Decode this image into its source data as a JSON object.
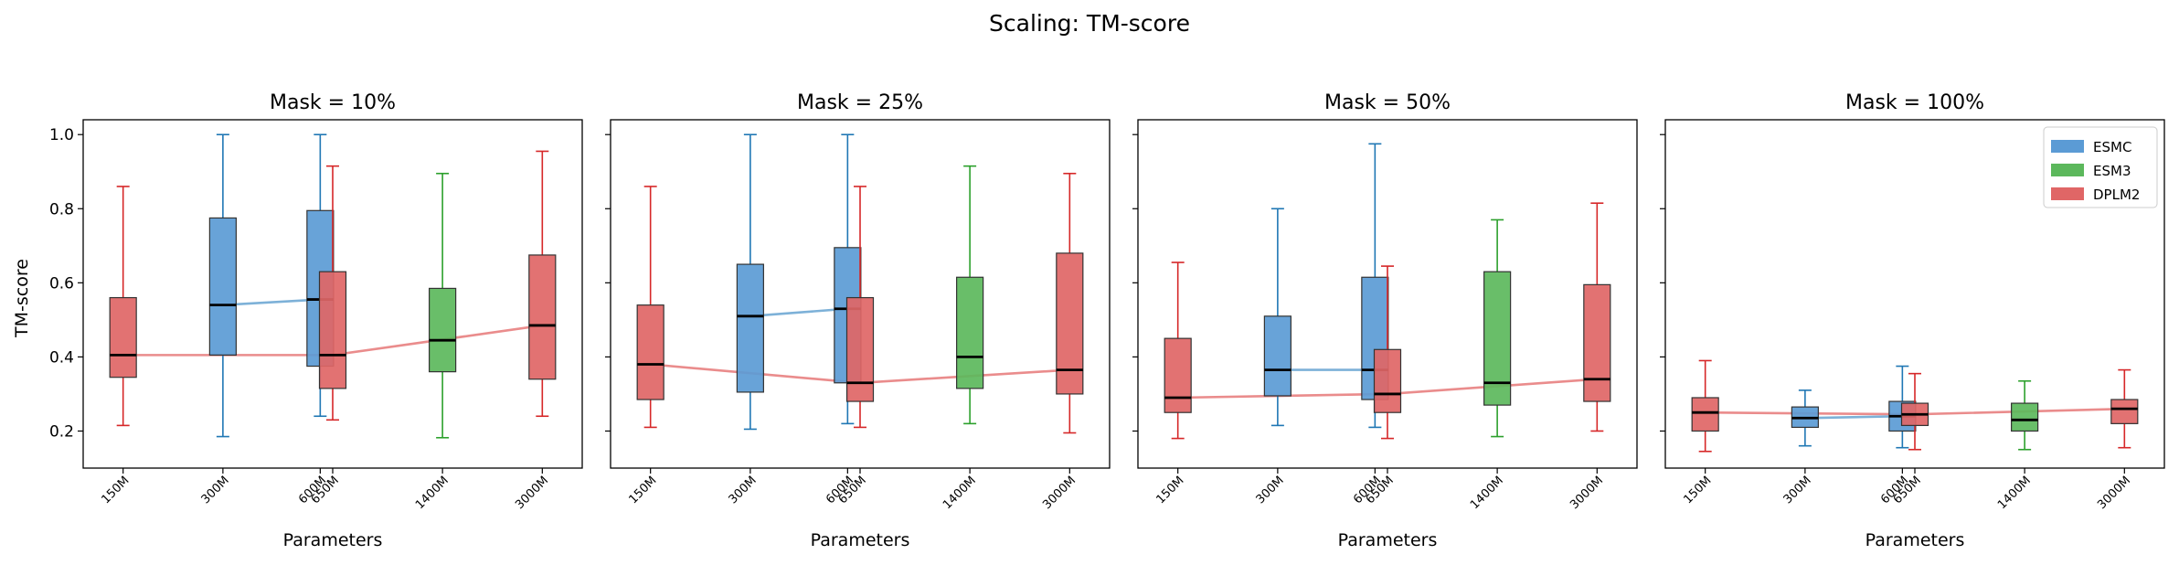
{
  "figure": {
    "title": "Scaling: TM-score",
    "ylabel": "TM-score",
    "xlabel": "Parameters"
  },
  "legend": {
    "position": "top-right",
    "items": [
      {
        "name": "ESMC",
        "color": "#5b9bd5"
      },
      {
        "name": "ESM3",
        "color": "#5cb85c"
      },
      {
        "name": "DPLM2",
        "color": "#e06666"
      }
    ]
  },
  "colors": {
    "ESMC": {
      "fill": "#5b9bd5",
      "edge": "#1f77b4",
      "line": "#6fa8d4"
    },
    "ESM3": {
      "fill": "#5cb85c",
      "edge": "#2ca02c",
      "line": "#7cc47c"
    },
    "DPLM2": {
      "fill": "#e06666",
      "edge": "#d62728",
      "line": "#e88080"
    }
  },
  "chart_data": [
    {
      "type": "box",
      "title": "Mask = 10%",
      "xlabel": "Parameters",
      "ylabel": "TM-score",
      "ylim": [
        0.1,
        1.04
      ],
      "yticks": [
        0.2,
        0.4,
        0.6,
        0.8,
        1.0
      ],
      "xticks": [
        "150M",
        "300M",
        "600M",
        "650M",
        "1400M",
        "3000M"
      ],
      "legend": false,
      "boxes": [
        {
          "model": "DPLM2",
          "params": "150M",
          "whislo": 0.215,
          "q1": 0.345,
          "med": 0.405,
          "q3": 0.56,
          "whishi": 0.86
        },
        {
          "model": "ESMC",
          "params": "300M",
          "whislo": 0.185,
          "q1": 0.405,
          "med": 0.54,
          "q3": 0.775,
          "whishi": 1.0
        },
        {
          "model": "ESMC",
          "params": "600M",
          "whislo": 0.24,
          "q1": 0.375,
          "med": 0.555,
          "q3": 0.795,
          "whishi": 1.0
        },
        {
          "model": "DPLM2",
          "params": "650M",
          "whislo": 0.23,
          "q1": 0.315,
          "med": 0.405,
          "q3": 0.63,
          "whishi": 0.915
        },
        {
          "model": "ESM3",
          "params": "1400M",
          "whislo": 0.182,
          "q1": 0.36,
          "med": 0.445,
          "q3": 0.585,
          "whishi": 0.895
        },
        {
          "model": "DPLM2",
          "params": "3000M",
          "whislo": 0.24,
          "q1": 0.34,
          "med": 0.485,
          "q3": 0.675,
          "whishi": 0.955
        }
      ]
    },
    {
      "type": "box",
      "title": "Mask = 25%",
      "xlabel": "Parameters",
      "ylabel": "",
      "ylim": [
        0.1,
        1.04
      ],
      "yticks": [
        0.2,
        0.4,
        0.6,
        0.8,
        1.0
      ],
      "xticks": [
        "150M",
        "300M",
        "600M",
        "650M",
        "1400M",
        "3000M"
      ],
      "legend": false,
      "boxes": [
        {
          "model": "DPLM2",
          "params": "150M",
          "whislo": 0.21,
          "q1": 0.285,
          "med": 0.38,
          "q3": 0.54,
          "whishi": 0.86
        },
        {
          "model": "ESMC",
          "params": "300M",
          "whislo": 0.205,
          "q1": 0.305,
          "med": 0.51,
          "q3": 0.65,
          "whishi": 1.0
        },
        {
          "model": "ESMC",
          "params": "600M",
          "whislo": 0.22,
          "q1": 0.33,
          "med": 0.53,
          "q3": 0.695,
          "whishi": 1.0
        },
        {
          "model": "DPLM2",
          "params": "650M",
          "whislo": 0.21,
          "q1": 0.28,
          "med": 0.33,
          "q3": 0.56,
          "whishi": 0.86
        },
        {
          "model": "ESM3",
          "params": "1400M",
          "whislo": 0.22,
          "q1": 0.315,
          "med": 0.4,
          "q3": 0.615,
          "whishi": 0.915
        },
        {
          "model": "DPLM2",
          "params": "3000M",
          "whislo": 0.195,
          "q1": 0.3,
          "med": 0.365,
          "q3": 0.68,
          "whishi": 0.895
        }
      ]
    },
    {
      "type": "box",
      "title": "Mask = 50%",
      "xlabel": "Parameters",
      "ylabel": "",
      "ylim": [
        0.1,
        1.04
      ],
      "yticks": [
        0.2,
        0.4,
        0.6,
        0.8,
        1.0
      ],
      "xticks": [
        "150M",
        "300M",
        "600M",
        "650M",
        "1400M",
        "3000M"
      ],
      "legend": false,
      "boxes": [
        {
          "model": "DPLM2",
          "params": "150M",
          "whislo": 0.18,
          "q1": 0.25,
          "med": 0.29,
          "q3": 0.45,
          "whishi": 0.655
        },
        {
          "model": "ESMC",
          "params": "300M",
          "whislo": 0.215,
          "q1": 0.295,
          "med": 0.365,
          "q3": 0.51,
          "whishi": 0.8
        },
        {
          "model": "ESMC",
          "params": "600M",
          "whislo": 0.21,
          "q1": 0.285,
          "med": 0.365,
          "q3": 0.615,
          "whishi": 0.975
        },
        {
          "model": "DPLM2",
          "params": "650M",
          "whislo": 0.18,
          "q1": 0.25,
          "med": 0.3,
          "q3": 0.42,
          "whishi": 0.645
        },
        {
          "model": "ESM3",
          "params": "1400M",
          "whislo": 0.185,
          "q1": 0.27,
          "med": 0.33,
          "q3": 0.63,
          "whishi": 0.77
        },
        {
          "model": "DPLM2",
          "params": "3000M",
          "whislo": 0.2,
          "q1": 0.28,
          "med": 0.34,
          "q3": 0.595,
          "whishi": 0.815
        }
      ]
    },
    {
      "type": "box",
      "title": "Mask = 100%",
      "xlabel": "Parameters",
      "ylabel": "",
      "ylim": [
        0.1,
        1.04
      ],
      "yticks": [
        0.2,
        0.4,
        0.6,
        0.8,
        1.0
      ],
      "xticks": [
        "150M",
        "300M",
        "600M",
        "650M",
        "1400M",
        "3000M"
      ],
      "legend": true,
      "boxes": [
        {
          "model": "DPLM2",
          "params": "150M",
          "whislo": 0.145,
          "q1": 0.2,
          "med": 0.25,
          "q3": 0.29,
          "whishi": 0.39
        },
        {
          "model": "ESMC",
          "params": "300M",
          "whislo": 0.16,
          "q1": 0.21,
          "med": 0.235,
          "q3": 0.265,
          "whishi": 0.31
        },
        {
          "model": "ESMC",
          "params": "600M",
          "whislo": 0.155,
          "q1": 0.2,
          "med": 0.24,
          "q3": 0.28,
          "whishi": 0.375
        },
        {
          "model": "DPLM2",
          "params": "650M",
          "whislo": 0.15,
          "q1": 0.215,
          "med": 0.245,
          "q3": 0.275,
          "whishi": 0.355
        },
        {
          "model": "ESM3",
          "params": "1400M",
          "whislo": 0.15,
          "q1": 0.2,
          "med": 0.23,
          "q3": 0.275,
          "whishi": 0.335
        },
        {
          "model": "DPLM2",
          "params": "3000M",
          "whislo": 0.155,
          "q1": 0.22,
          "med": 0.26,
          "q3": 0.285,
          "whishi": 0.365
        }
      ]
    }
  ]
}
